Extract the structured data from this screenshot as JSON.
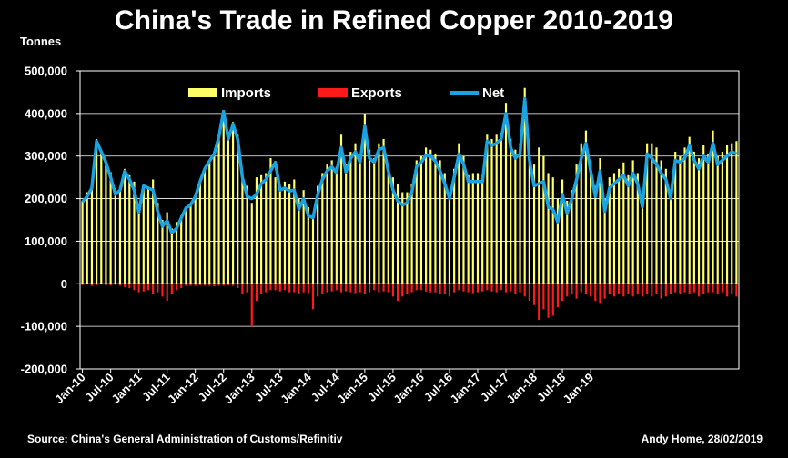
{
  "title": "China's Trade in Refined Copper 2010-2019",
  "units": "Tonnes",
  "source": "Source: China's General Administration of Customs/Refinitiv",
  "author": "Andy Home, 28/02/2019",
  "chart_data": {
    "type": "bar",
    "title": "China's Trade in Refined Copper 2010-2019",
    "ylabel": "Tonnes",
    "ylim": [
      -200000,
      500000
    ],
    "yticks": [
      500000,
      400000,
      300000,
      200000,
      100000,
      0,
      -100000,
      -200000
    ],
    "ytick_labels": [
      "500,000",
      "400,000",
      "300,000",
      "200,000",
      "100,000",
      "0",
      "-100,000",
      "-200,000"
    ],
    "x_start": "2010-01",
    "xtick_labels": [
      "Jan-10",
      "Jul-10",
      "Jan-11",
      "Jul-11",
      "Jan-12",
      "Jul-12",
      "Jan-13",
      "Jul-13",
      "Jan-14",
      "Jul-14",
      "Jan-15",
      "Jul-15",
      "Jan-16",
      "Jul-16",
      "Jan-17",
      "Jul-17",
      "Jan-18",
      "Jul-18",
      "Jan-19"
    ],
    "legend_position": "top-left",
    "series": [
      {
        "name": "Imports",
        "type": "bar",
        "color": "#ffff66",
        "values": [
          195000,
          215000,
          235000,
          340000,
          310000,
          290000,
          262000,
          225000,
          228000,
          270000,
          255000,
          240000,
          178000,
          230000,
          225000,
          245000,
          190000,
          150000,
          168000,
          130000,
          145000,
          160000,
          181000,
          190000,
          210000,
          245000,
          272000,
          290000,
          310000,
          348000,
          408000,
          345000,
          380000,
          350000,
          265000,
          230000,
          190000,
          250000,
          255000,
          260000,
          295000,
          250000,
          225000,
          240000,
          235000,
          245000,
          200000,
          220000,
          180000,
          160000,
          230000,
          260000,
          280000,
          290000,
          275000,
          350000,
          280000,
          310000,
          330000,
          300000,
          400000,
          315000,
          295000,
          330000,
          340000,
          280000,
          250000,
          235000,
          215000,
          215000,
          235000,
          290000,
          300000,
          320000,
          315000,
          305000,
          290000,
          260000,
          210000,
          270000,
          330000,
          300000,
          255000,
          260000,
          260000,
          255000,
          350000,
          340000,
          350000,
          355000,
          425000,
          340000,
          315000,
          330000,
          460000,
          330000,
          280000,
          320000,
          300000,
          260000,
          250000,
          200000,
          245000,
          195000,
          220000,
          280000,
          330000,
          360000,
          290000,
          230000,
          295000,
          200000,
          250000,
          260000,
          270000,
          285000,
          255000,
          290000,
          260000,
          210000,
          330000,
          330000,
          320000,
          290000,
          270000,
          215000,
          310000,
          300000,
          320000,
          345000,
          310000,
          295000,
          325000,
          305000,
          360000,
          300000,
          310000,
          325000,
          330000,
          335000
        ]
      },
      {
        "name": "Exports",
        "type": "bar",
        "color": "#ff1a1a",
        "values": [
          -3000,
          -2000,
          -5000,
          -3000,
          -2000,
          -4000,
          -4000,
          -3000,
          -5000,
          -8000,
          -10000,
          -15000,
          -20000,
          -18000,
          -15000,
          -25000,
          -20000,
          -30000,
          -40000,
          -25000,
          -15000,
          -10000,
          -5000,
          -5000,
          -5000,
          -4000,
          -5000,
          -5000,
          -6000,
          -5000,
          -5000,
          -4000,
          -5000,
          -10000,
          -25000,
          -20000,
          -100000,
          -40000,
          -25000,
          -20000,
          -15000,
          -15000,
          -18000,
          -15000,
          -20000,
          -20000,
          -25000,
          -20000,
          -22000,
          -60000,
          -30000,
          -25000,
          -20000,
          -18000,
          -15000,
          -20000,
          -18000,
          -20000,
          -22000,
          -20000,
          -25000,
          -20000,
          -15000,
          -20000,
          -18000,
          -20000,
          -30000,
          -40000,
          -30000,
          -25000,
          -20000,
          -15000,
          -15000,
          -18000,
          -20000,
          -20000,
          -25000,
          -25000,
          -30000,
          -20000,
          -15000,
          -18000,
          -20000,
          -22000,
          -20000,
          -18000,
          -15000,
          -18000,
          -20000,
          -15000,
          -20000,
          -18000,
          -25000,
          -20000,
          -30000,
          -40000,
          -50000,
          -85000,
          -60000,
          -80000,
          -75000,
          -55000,
          -40000,
          -30000,
          -25000,
          -35000,
          -20000,
          -25000,
          -30000,
          -40000,
          -45000,
          -35000,
          -25000,
          -30000,
          -25000,
          -30000,
          -25000,
          -30000,
          -25000,
          -30000,
          -25000,
          -30000,
          -25000,
          -35000,
          -30000,
          -25000,
          -20000,
          -25000,
          -20000,
          -25000,
          -20000,
          -30000,
          -25000,
          -20000,
          -20000,
          -25000,
          -20000,
          -30000,
          -25000,
          -30000
        ]
      },
      {
        "name": "Net",
        "type": "line",
        "color": "#1aa3e0",
        "values": [
          192000,
          205000,
          225000,
          335000,
          310000,
          285000,
          250000,
          210000,
          220000,
          265000,
          245000,
          220000,
          168000,
          230000,
          225000,
          220000,
          170000,
          135000,
          148000,
          120000,
          130000,
          155000,
          178000,
          185000,
          205000,
          240000,
          270000,
          288000,
          305000,
          345000,
          405000,
          340000,
          375000,
          340000,
          250000,
          205000,
          200000,
          210000,
          235000,
          245000,
          265000,
          285000,
          220000,
          225000,
          218000,
          220000,
          175000,
          200000,
          160000,
          155000,
          210000,
          245000,
          265000,
          275000,
          260000,
          320000,
          262000,
          295000,
          310000,
          285000,
          370000,
          295000,
          285000,
          315000,
          320000,
          265000,
          220000,
          195000,
          185000,
          190000,
          215000,
          275000,
          285000,
          302000,
          300000,
          288000,
          265000,
          235000,
          200000,
          250000,
          305000,
          280000,
          240000,
          240000,
          240000,
          240000,
          335000,
          325000,
          330000,
          340000,
          400000,
          320000,
          295000,
          305000,
          435000,
          290000,
          230000,
          235000,
          240000,
          180000,
          175000,
          145000,
          210000,
          165000,
          200000,
          245000,
          295000,
          330000,
          265000,
          205000,
          265000,
          170000,
          225000,
          235000,
          245000,
          255000,
          230000,
          260000,
          235000,
          180000,
          305000,
          295000,
          280000,
          260000,
          245000,
          200000,
          290000,
          285000,
          295000,
          325000,
          290000,
          270000,
          300000,
          285000,
          330000,
          280000,
          290000,
          300000,
          310000,
          305000
        ]
      }
    ]
  }
}
